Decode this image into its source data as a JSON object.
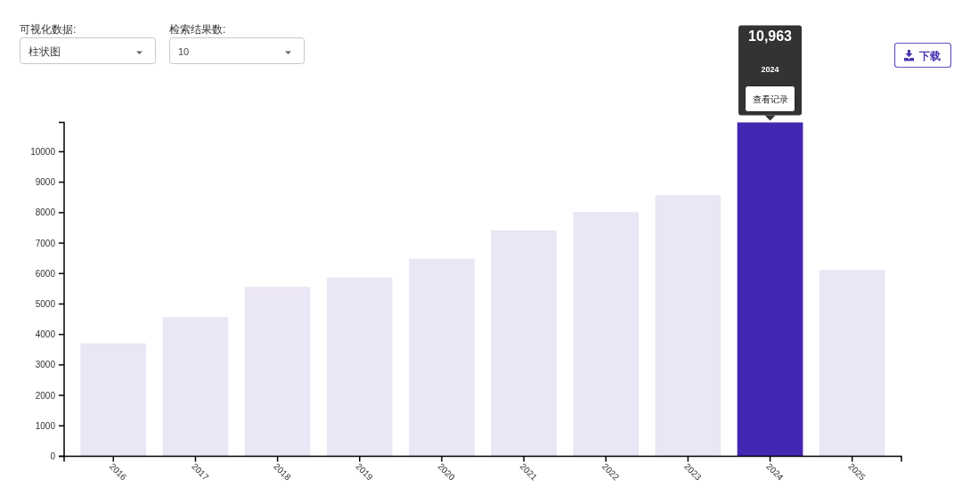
{
  "chart_data": {
    "type": "bar",
    "categories": [
      "2016",
      "2017",
      "2018",
      "2019",
      "2020",
      "2021",
      "2022",
      "2023",
      "2024",
      "2025"
    ],
    "values": [
      3710,
      4570,
      5560,
      5870,
      6490,
      7420,
      8030,
      8580,
      10963,
      6120
    ],
    "colors": [
      "#ebe6f5",
      "#ebe6f5",
      "#ebe6f5",
      "#ebe6f5",
      "#ebe6f5",
      "#ebe6f5",
      "#ebe6f5",
      "#ebe6f5",
      "#4326b2",
      "#ebe6f5"
    ],
    "ylim": [
      0,
      10963
    ],
    "yticks": [
      0,
      1000,
      2000,
      3000,
      4000,
      5000,
      6000,
      7000,
      8000,
      9000,
      10000
    ],
    "annotations": [
      "可视化数据:",
      "柱状图",
      "检索结果数:",
      "10",
      "下载",
      "10,963",
      "2024",
      "查看记录"
    ]
  }
}
